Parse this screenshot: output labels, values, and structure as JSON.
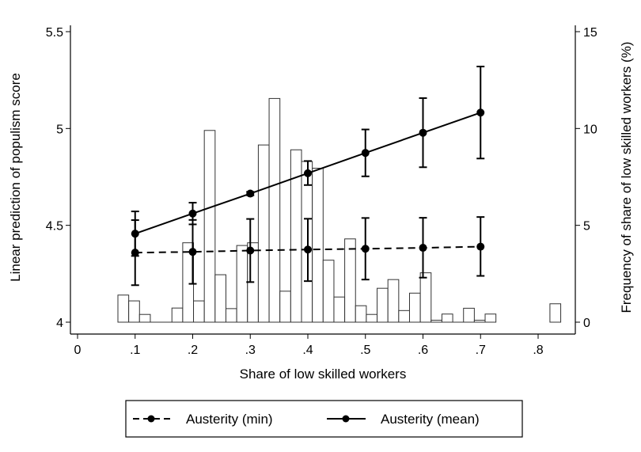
{
  "chart_data": {
    "type": "line",
    "xlabel": "Share of low skilled workers",
    "ylabel": "Linear prediction of populism score",
    "y2label": "Frequency of share of low skilled workers (%)",
    "xlim": [
      0,
      0.85
    ],
    "ylim": [
      4,
      5.5
    ],
    "y2lim": [
      0,
      15
    ],
    "x_ticks": [
      0,
      0.1,
      0.2,
      0.3,
      0.4,
      0.5,
      0.6,
      0.7,
      0.8
    ],
    "x_tick_labels": [
      "0",
      ".1",
      ".2",
      ".3",
      ".4",
      ".5",
      ".6",
      ".7",
      ".8"
    ],
    "y_ticks": [
      4,
      4.5,
      5,
      5.5
    ],
    "y_tick_labels": [
      "4",
      "4.5",
      "5",
      "5.5"
    ],
    "y2_ticks": [
      0,
      5,
      10,
      15
    ],
    "y2_tick_labels": [
      "0",
      "5",
      "10",
      "15"
    ],
    "grid": false,
    "legend_position": "bottom",
    "series": [
      {
        "name": "Austerity (min)",
        "style": "dashed",
        "x": [
          0.1,
          0.2,
          0.3,
          0.4,
          0.5,
          0.6,
          0.7
        ],
        "y": [
          4.359,
          4.363,
          4.37,
          4.375,
          4.379,
          4.384,
          4.39
        ],
        "ci_low": [
          4.191,
          4.198,
          4.207,
          4.212,
          4.22,
          4.23,
          4.239
        ],
        "ci_high": [
          4.527,
          4.528,
          4.533,
          4.534,
          4.538,
          4.539,
          4.543
        ]
      },
      {
        "name": "Austerity (mean)",
        "style": "solid",
        "x": [
          0.1,
          0.2,
          0.3,
          0.4,
          0.5,
          0.6,
          0.7
        ],
        "y": [
          4.457,
          4.561,
          4.664,
          4.769,
          4.874,
          4.978,
          5.082
        ],
        "ci_low": [
          4.342,
          4.505,
          4.655,
          4.708,
          4.753,
          4.8,
          4.845
        ],
        "ci_high": [
          4.572,
          4.617,
          4.673,
          4.832,
          4.995,
          5.157,
          5.32
        ]
      }
    ],
    "histogram": {
      "axis": "right",
      "bin_start": 0.0701,
      "bin_width": 0.01876,
      "frequencies": [
        1.4,
        1.1,
        0.4,
        0,
        0,
        0.73,
        4.1,
        1.1,
        9.9,
        2.45,
        0.7,
        3.96,
        4.1,
        9.15,
        11.55,
        1.6,
        8.9,
        8.3,
        7.95,
        3.2,
        1.3,
        4.3,
        0.85,
        0.4,
        1.75,
        2.2,
        0.6,
        1.5,
        2.55,
        0.1,
        0.42,
        0,
        0.72,
        0.1,
        0.42,
        0,
        0,
        0,
        0,
        0,
        0.95
      ]
    },
    "colors": {
      "line": "#000000",
      "bar_fill": "#ffffff",
      "bar_stroke": "#333333"
    }
  }
}
